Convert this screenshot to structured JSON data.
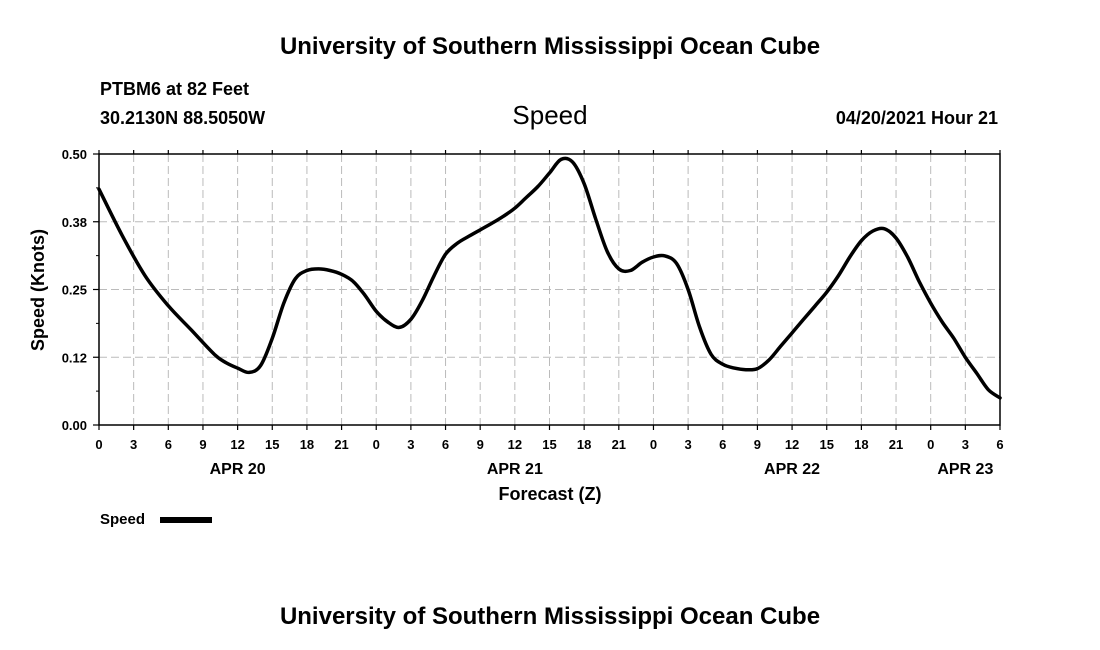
{
  "page": {
    "title_top": "University of Southern Mississippi Ocean Cube",
    "title_bottom": "University of Southern Mississippi Ocean Cube",
    "station": "PTBM6 at 82 Feet",
    "coords": "30.2130N  88.5050W",
    "variable": "Speed",
    "timestamp": "04/20/2021 Hour 21"
  },
  "chart_data": {
    "type": "line",
    "xlabel": "Forecast (Z)",
    "ylabel": "Speed (Knots)",
    "ylim": [
      0,
      0.5
    ],
    "xlim": [
      0,
      78
    ],
    "y_ticks": [
      "0.00",
      "0.12",
      "0.25",
      "0.38",
      "0.50"
    ],
    "x_tick_labels": [
      "0",
      "3",
      "6",
      "9",
      "12",
      "15",
      "18",
      "21",
      "0",
      "3",
      "6",
      "9",
      "12",
      "15",
      "18",
      "21",
      "0",
      "3",
      "6",
      "9",
      "12",
      "15",
      "18",
      "21",
      "0",
      "3",
      "6"
    ],
    "date_labels": [
      {
        "label": "APR 20",
        "x": 12
      },
      {
        "label": "APR 21",
        "x": 36
      },
      {
        "label": "APR 22",
        "x": 60
      },
      {
        "label": "APR 23",
        "x": 75
      }
    ],
    "grid": true,
    "legend": "bottom-left",
    "series": [
      {
        "name": "Speed",
        "color": "#000000",
        "x": [
          0,
          2,
          4,
          6,
          8,
          10,
          11,
          12,
          13,
          14,
          15,
          16,
          17,
          18,
          19,
          20,
          21,
          22,
          23,
          24,
          25,
          26,
          27,
          28,
          29,
          30,
          31,
          32,
          33,
          34,
          35,
          36,
          37,
          38,
          39,
          40,
          41,
          42,
          43,
          44,
          45,
          46,
          47,
          48,
          49,
          50,
          51,
          52,
          53,
          54,
          55,
          56,
          57,
          58,
          59,
          60,
          61,
          62,
          63,
          64,
          65,
          66,
          67,
          68,
          69,
          70,
          71,
          72,
          73,
          74,
          75,
          76,
          77,
          78
        ],
        "y": [
          0.435,
          0.35,
          0.275,
          0.22,
          0.175,
          0.13,
          0.115,
          0.105,
          0.097,
          0.11,
          0.16,
          0.225,
          0.27,
          0.285,
          0.288,
          0.285,
          0.278,
          0.265,
          0.24,
          0.21,
          0.19,
          0.18,
          0.195,
          0.23,
          0.275,
          0.315,
          0.335,
          0.348,
          0.36,
          0.372,
          0.385,
          0.4,
          0.42,
          0.44,
          0.465,
          0.49,
          0.485,
          0.445,
          0.38,
          0.32,
          0.288,
          0.285,
          0.3,
          0.31,
          0.312,
          0.298,
          0.25,
          0.18,
          0.13,
          0.112,
          0.105,
          0.102,
          0.104,
          0.12,
          0.145,
          0.17,
          0.195,
          0.22,
          0.245,
          0.275,
          0.31,
          0.34,
          0.358,
          0.362,
          0.345,
          0.31,
          0.265,
          0.225,
          0.19,
          0.16,
          0.125,
          0.095,
          0.065,
          0.05
        ]
      }
    ]
  }
}
